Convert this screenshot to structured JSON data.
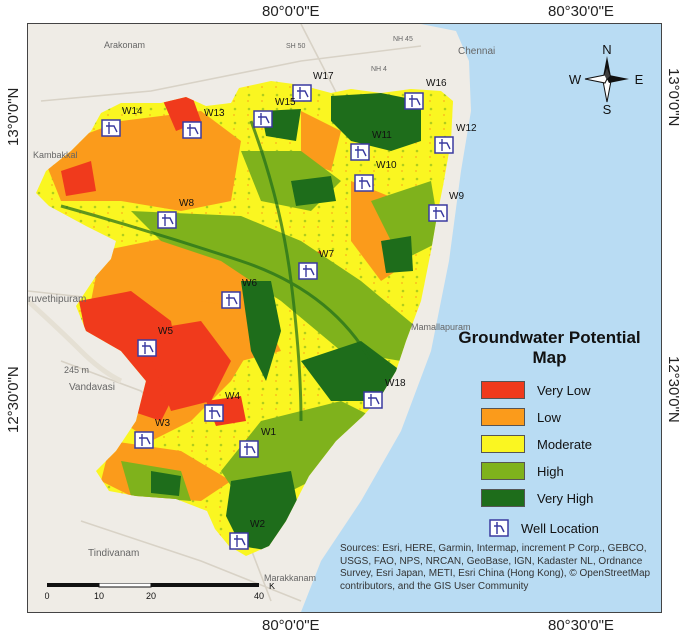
{
  "graticule": {
    "top": [
      "80°0'0\"E",
      "80°30'0\"E"
    ],
    "bottom": [
      "80°0'0\"E",
      "80°30'0\"E"
    ],
    "left": [
      "13°0'0\"N",
      "12°30'0\"N"
    ],
    "right": [
      "13°0'0\"N",
      "12°30'0\"N"
    ]
  },
  "basemap_labels": {
    "arakonam": "Arakonam",
    "chennai": "Chennai",
    "kambakkal": "Kambakkal",
    "ruvethipuram": "ruvethipuram",
    "vandavasi": "Vandavasi",
    "elev": "245 m",
    "mamallapuram": "Mamallapuram",
    "tindivanam": "Tindivanam",
    "marakkanam": "Marakkanam",
    "sh50": "SH 50",
    "nh4": "NH 4",
    "nh45": "NH 45"
  },
  "wells": [
    {
      "id": "W17"
    },
    {
      "id": "W16"
    },
    {
      "id": "W15"
    },
    {
      "id": "W14"
    },
    {
      "id": "W13"
    },
    {
      "id": "W12"
    },
    {
      "id": "W11"
    },
    {
      "id": "W10"
    },
    {
      "id": "W9"
    },
    {
      "id": "W8"
    },
    {
      "id": "W7"
    },
    {
      "id": "W6"
    },
    {
      "id": "W5"
    },
    {
      "id": "W18"
    },
    {
      "id": "W4"
    },
    {
      "id": "W3"
    },
    {
      "id": "W1"
    },
    {
      "id": "W2"
    }
  ],
  "legend": {
    "title_line1": "Groundwater Potential",
    "title_line2": "Map",
    "classes": [
      {
        "label": "Very Low",
        "color": "#f03a1c"
      },
      {
        "label": "Low",
        "color": "#fb9b1b"
      },
      {
        "label": "Moderate",
        "color": "#faf621"
      },
      {
        "label": "High",
        "color": "#7fb21c"
      },
      {
        "label": "Very High",
        "color": "#1e6d1b"
      }
    ],
    "well_label": "Well Location"
  },
  "compass": {
    "n": "N",
    "s": "S",
    "e": "E",
    "w": "W"
  },
  "scalebar": {
    "ticks": [
      "0",
      "10",
      "20",
      "40"
    ],
    "unit": "Km"
  },
  "sources": "Sources: Esri, HERE, Garmin, Intermap, increment P Corp., GEBCO, USGS, FAO, NPS, NRCAN, GeoBase, IGN, Kadaster NL, Ordnance Survey, Esri Japan, METI, Esri China (Hong Kong), © OpenStreetMap contributors, and the GIS User Community",
  "colors": {
    "sea": "#b9dcf3",
    "land": "#efece6",
    "very_low": "#f03a1c",
    "low": "#fb9b1b",
    "moderate": "#faf621",
    "high": "#7fb21c",
    "very_high": "#1e6d1b"
  }
}
